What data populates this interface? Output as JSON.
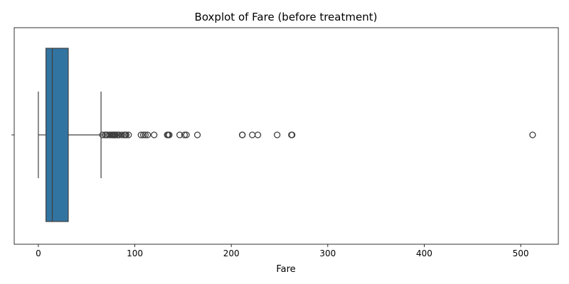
{
  "chart_data": {
    "type": "boxplot",
    "title": "Boxplot of Fare (before treatment)",
    "xlabel": "Fare",
    "ylabel": "",
    "xlim": [
      -25,
      539
    ],
    "xticks": [
      0,
      100,
      200,
      300,
      400,
      500
    ],
    "box": {
      "whisker_low": 0,
      "q1": 7.9,
      "median": 14.45,
      "q3": 31.0,
      "whisker_high": 65.0
    },
    "outliers": [
      66.6,
      69.3,
      69.55,
      71.0,
      71.28,
      73.5,
      75.25,
      76.29,
      76.73,
      77.29,
      77.96,
      78.27,
      78.85,
      79.2,
      79.65,
      80.0,
      81.86,
      82.17,
      83.16,
      83.48,
      86.5,
      89.1,
      90.0,
      91.08,
      93.5,
      106.43,
      108.9,
      110.88,
      113.28,
      120.0,
      133.65,
      134.5,
      135.63,
      146.52,
      151.55,
      153.46,
      164.87,
      211.34,
      211.5,
      221.78,
      227.53,
      247.52,
      262.38,
      263.0,
      512.33
    ],
    "grid": false,
    "colors": {
      "box_fill": "#3274a1",
      "line": "#3f3f3f",
      "spine": "#000000"
    }
  }
}
